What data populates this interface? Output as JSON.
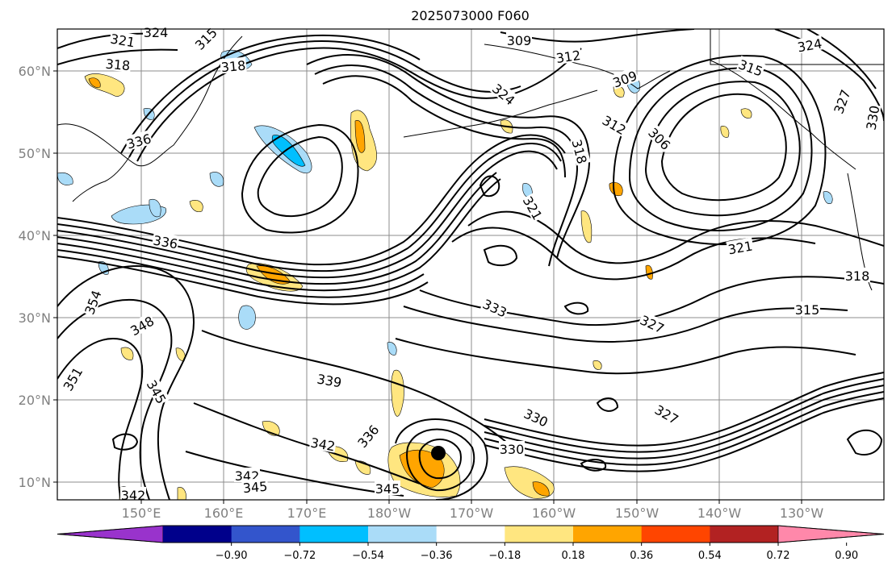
{
  "title": "2025073000 F060",
  "lat_ticks": [
    "60°N",
    "50°N",
    "40°N",
    "30°N",
    "20°N",
    "10°N"
  ],
  "lon_ticks": [
    "150°E",
    "160°E",
    "170°E",
    "180°W",
    "170°W",
    "160°W",
    "150°W",
    "140°W",
    "130°W"
  ],
  "contour_labels": [
    "321",
    "324",
    "318",
    "315",
    "318",
    "309",
    "312",
    "315",
    "324",
    "309",
    "324",
    "312",
    "306",
    "327",
    "330",
    "336",
    "318",
    "336",
    "321",
    "354",
    "348",
    "333",
    "327",
    "315",
    "318",
    "321",
    "351",
    "345",
    "339",
    "330",
    "327",
    "342",
    "336",
    "330",
    "342",
    "345",
    "342",
    "345"
  ],
  "colorbar": {
    "extend": "both",
    "colors": [
      "#9933cc",
      "#00008b",
      "#3355cc",
      "#00bfff",
      "#aadcf8",
      "#ffffff",
      "#ffe680",
      "#ffa500",
      "#ff4500",
      "#b22222",
      "#ff88aa"
    ],
    "tick_labels": [
      "−0.90",
      "−0.72",
      "−0.54",
      "−0.36",
      "−0.18",
      "0.18",
      "0.36",
      "0.54",
      "0.72",
      "0.90"
    ]
  },
  "marker": "tropical-cyclone-center"
}
